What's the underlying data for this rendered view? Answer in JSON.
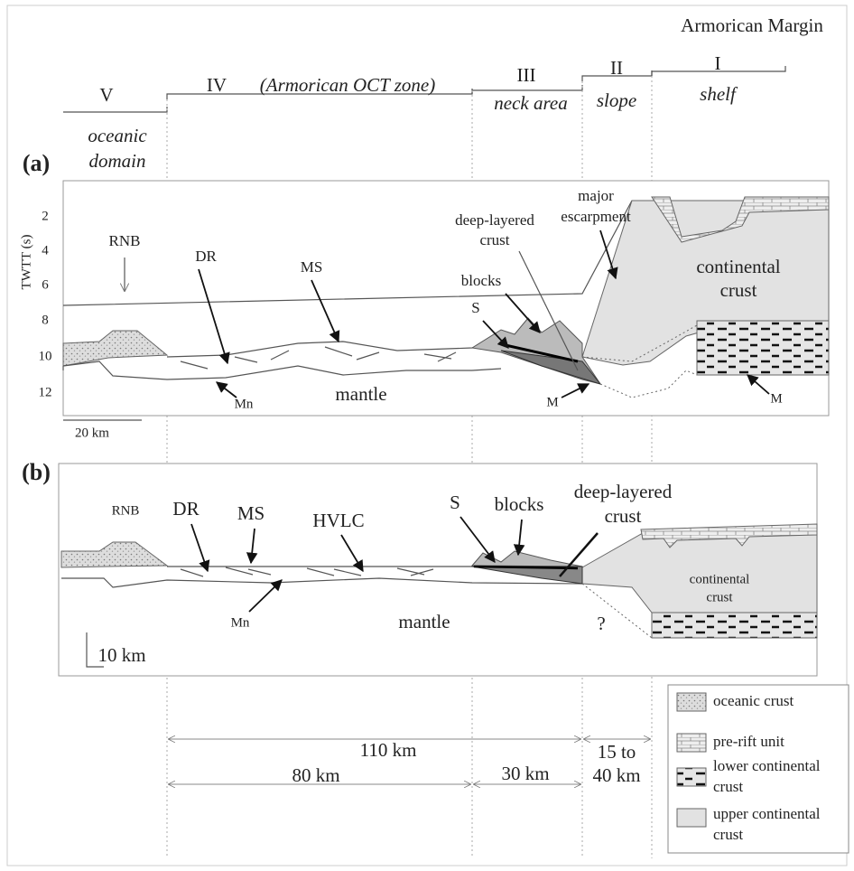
{
  "header": {
    "title": "Armorican Margin"
  },
  "domains": [
    {
      "numeral": "V",
      "name": [
        "oceanic",
        "domain"
      ]
    },
    {
      "numeral": "IV",
      "name": [
        "(Armorican OCT zone)"
      ]
    },
    {
      "numeral": "III",
      "name": [
        "neck area"
      ]
    },
    {
      "numeral": "II",
      "name": [
        "slope"
      ]
    },
    {
      "numeral": "I",
      "name": [
        "shelf"
      ]
    }
  ],
  "panel_a": {
    "label": "(a)",
    "axis_label": "TWTT (s)",
    "axis_ticks": [
      "2",
      "4",
      "6",
      "8",
      "10",
      "12"
    ],
    "rnb": "RNB",
    "dr": "DR",
    "ms": "MS",
    "blocks": "blocks",
    "s": "S",
    "deep_layered": [
      "deep-layered",
      "crust"
    ],
    "escarpment": [
      "major",
      "escarpment"
    ],
    "continental": [
      "continental",
      "crust"
    ],
    "mantle": "mantle",
    "mn": "Mn",
    "m_left": "M",
    "m_right": "M",
    "scale": "20 km"
  },
  "panel_b": {
    "label": "(b)",
    "rnb": "RNB",
    "dr": "DR",
    "ms": "MS",
    "hvlc": "HVLC",
    "s": "S",
    "blocks": "blocks",
    "deep_layered": [
      "deep-layered",
      "crust"
    ],
    "continental": [
      "continental",
      "crust"
    ],
    "mantle": "mantle",
    "mn": "Mn",
    "question": "?",
    "scale": "10 km"
  },
  "distances": {
    "total": "110 km",
    "oct": "80 km",
    "neck": "30 km",
    "slope": [
      "15 to",
      "40 km"
    ]
  },
  "legend": [
    {
      "label": [
        "oceanic crust"
      ]
    },
    {
      "label": [
        "pre-rift unit"
      ]
    },
    {
      "label": [
        "lower continental",
        "crust"
      ]
    },
    {
      "label": [
        "upper continental",
        "crust"
      ]
    }
  ]
}
